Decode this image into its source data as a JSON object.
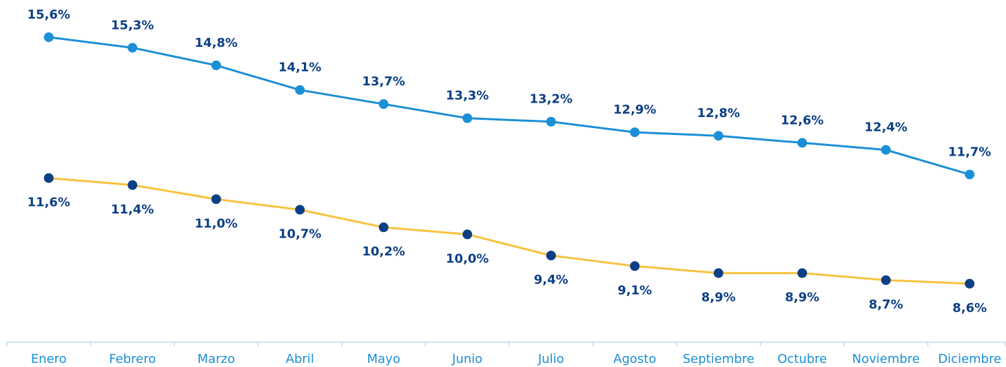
{
  "chart_data": {
    "type": "line",
    "categories": [
      "Enero",
      "Febrero",
      "Marzo",
      "Abril",
      "Mayo",
      "Junio",
      "Julio",
      "Agosto",
      "Septiembre",
      "Octubre",
      "Noviembre",
      "Diciembre"
    ],
    "series": [
      {
        "color": "#1b8fd6",
        "marker_color": "#1b8fd6",
        "values": [
          15.6,
          15.3,
          14.8,
          14.1,
          13.7,
          13.3,
          13.2,
          12.9,
          12.8,
          12.6,
          12.4,
          11.7
        ],
        "value_labels": [
          "15,6%",
          "15,3%",
          "14,8%",
          "14,1%",
          "13,7%",
          "13,3%",
          "13,2%",
          "12,9%",
          "12,8%",
          "12,6%",
          "12,4%",
          "11,7%"
        ]
      },
      {
        "color": "#f7c23e",
        "marker_color": "#0d3f85",
        "values": [
          11.6,
          11.4,
          11.0,
          10.7,
          10.2,
          10.0,
          9.4,
          9.1,
          8.9,
          8.9,
          8.7,
          8.6
        ],
        "value_labels": [
          "11,6%",
          "11,4%",
          "11,0%",
          "10,7%",
          "10,2%",
          "10,0%",
          "9,4%",
          "9,1%",
          "8,9%",
          "8,9%",
          "8,7%",
          "8,6%"
        ]
      }
    ]
  }
}
